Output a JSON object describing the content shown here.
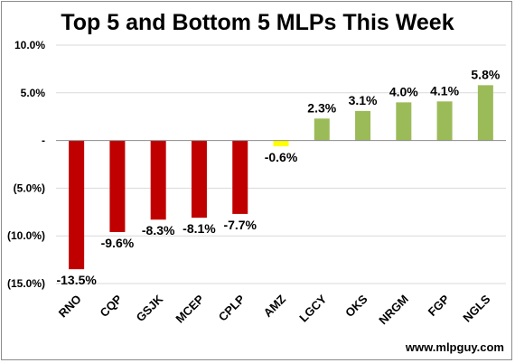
{
  "chart_data": {
    "type": "bar",
    "title": "Top 5 and Bottom 5 MLPs This Week",
    "categories": [
      "RNO",
      "CQP",
      "GSJK",
      "MCEP",
      "CPLP",
      "AMZ",
      "LGCY",
      "OKS",
      "NRGM",
      "FGP",
      "NGLS"
    ],
    "values": [
      -13.5,
      -9.6,
      -8.3,
      -8.1,
      -7.7,
      -0.6,
      2.3,
      3.1,
      4.0,
      4.1,
      5.8
    ],
    "data_labels": [
      "-13.5%",
      "-9.6%",
      "-8.3%",
      "-8.1%",
      "-7.7%",
      "-0.6%",
      "2.3%",
      "3.1%",
      "4.0%",
      "4.1%",
      "5.8%"
    ],
    "colors": [
      "#c00000",
      "#c00000",
      "#c00000",
      "#c00000",
      "#c00000",
      "#ffff00",
      "#9bbb59",
      "#9bbb59",
      "#9bbb59",
      "#9bbb59",
      "#9bbb59"
    ],
    "ylim": [
      -15,
      10
    ],
    "yticks": [
      10,
      5,
      0,
      -5,
      -10,
      -15
    ],
    "ytick_labels": [
      "10.0%",
      "5.0%",
      "-",
      "(5.0%)",
      "(10.0%)",
      "(15.0%)"
    ],
    "grid": true,
    "xlabel": "",
    "ylabel": ""
  },
  "footer": "www.mlpguy.com"
}
